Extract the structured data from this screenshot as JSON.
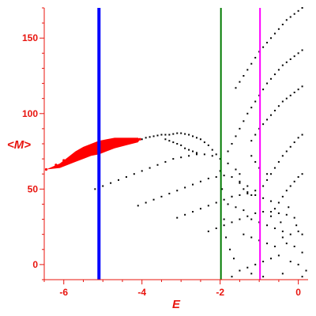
{
  "chart_data": {
    "type": "scatter",
    "title": "",
    "xlabel": "E",
    "ylabel": "<M>",
    "xlim": [
      -6.5,
      0.25
    ],
    "ylim": [
      -10,
      170
    ],
    "xticks": [
      -6,
      -4,
      -2,
      0
    ],
    "yticks": [
      0,
      50,
      100,
      150
    ],
    "grid": false,
    "colors": {
      "axis": "#e8140e",
      "red_series": "#ff0000",
      "black_series": "#000000",
      "line_blue": "#0000ff",
      "line_green": "#007a00",
      "line_magenta": "#ff00ff"
    },
    "vertical_lines": [
      {
        "x": -5.1,
        "color": "#0000ff"
      },
      {
        "x": -1.98,
        "color": "#007a00"
      },
      {
        "x": -0.98,
        "color": "#ff00ff"
      }
    ],
    "series": [
      {
        "color": "#ff0000",
        "kind": "dense-band",
        "points": [
          [
            -6.45,
            63
          ],
          [
            -6.2,
            66
          ],
          [
            -6.0,
            69
          ],
          [
            -5.8,
            71
          ],
          [
            -5.6,
            73
          ],
          [
            -5.4,
            75
          ],
          [
            -5.2,
            77
          ],
          [
            -5.0,
            78
          ],
          [
            -4.8,
            79
          ],
          [
            -4.6,
            80
          ],
          [
            -4.4,
            81
          ],
          [
            -4.2,
            82
          ],
          [
            -4.05,
            83
          ]
        ],
        "upper": [
          [
            -6.1,
            67
          ],
          [
            -5.9,
            71
          ],
          [
            -5.7,
            75
          ],
          [
            -5.5,
            78
          ],
          [
            -5.3,
            80
          ],
          [
            -5.1,
            82
          ],
          [
            -4.9,
            83
          ],
          [
            -4.7,
            84
          ],
          [
            -4.4,
            84
          ],
          [
            -4.1,
            84
          ]
        ],
        "lower": [
          [
            -6.1,
            64
          ],
          [
            -5.9,
            66
          ],
          [
            -5.7,
            68
          ],
          [
            -5.5,
            70
          ],
          [
            -5.3,
            72
          ],
          [
            -5.1,
            73
          ],
          [
            -4.9,
            75
          ],
          [
            -4.7,
            77
          ],
          [
            -4.4,
            79
          ],
          [
            -4.1,
            81
          ]
        ]
      },
      {
        "color": "#000000",
        "kind": "dots",
        "points": [
          [
            -4.0,
            83
          ],
          [
            -3.9,
            84
          ],
          [
            -3.8,
            84.5
          ],
          [
            -3.7,
            85
          ],
          [
            -3.6,
            85.5
          ],
          [
            -3.5,
            86
          ],
          [
            -3.4,
            86
          ],
          [
            -3.3,
            86
          ],
          [
            -3.2,
            86.5
          ],
          [
            -3.1,
            87
          ],
          [
            -3.0,
            87
          ],
          [
            -2.9,
            86.5
          ],
          [
            -2.8,
            86
          ],
          [
            -2.7,
            85
          ],
          [
            -2.6,
            84
          ],
          [
            -2.5,
            83
          ],
          [
            -2.4,
            81
          ],
          [
            -2.3,
            79
          ],
          [
            -2.2,
            76
          ],
          [
            -2.1,
            73
          ],
          [
            -3.4,
            83
          ],
          [
            -3.3,
            82
          ],
          [
            -3.2,
            81
          ],
          [
            -3.1,
            80
          ],
          [
            -3.0,
            79
          ],
          [
            -2.9,
            77
          ],
          [
            -2.8,
            76
          ],
          [
            -2.7,
            75
          ],
          [
            -2.6,
            74
          ],
          [
            -5.2,
            50
          ],
          [
            -5.0,
            52
          ],
          [
            -4.8,
            54
          ],
          [
            -4.6,
            56
          ],
          [
            -4.4,
            58
          ],
          [
            -4.2,
            60
          ],
          [
            -4.0,
            62
          ],
          [
            -3.8,
            64
          ],
          [
            -3.6,
            66
          ],
          [
            -3.4,
            68
          ],
          [
            -3.2,
            70
          ],
          [
            -3.0,
            71
          ],
          [
            -2.8,
            72
          ],
          [
            -2.6,
            73
          ],
          [
            -2.4,
            73
          ],
          [
            -2.2,
            72
          ],
          [
            -2.0,
            70
          ],
          [
            -1.8,
            67
          ],
          [
            -1.6,
            63
          ],
          [
            -1.5,
            60
          ],
          [
            -4.1,
            39
          ],
          [
            -3.9,
            41
          ],
          [
            -3.7,
            43
          ],
          [
            -3.5,
            45
          ],
          [
            -3.3,
            47
          ],
          [
            -3.1,
            49
          ],
          [
            -2.9,
            51
          ],
          [
            -2.7,
            53
          ],
          [
            -2.5,
            55
          ],
          [
            -2.3,
            57
          ],
          [
            -2.1,
            58
          ],
          [
            -1.9,
            59
          ],
          [
            -1.7,
            58
          ],
          [
            -1.5,
            55
          ],
          [
            -1.3,
            52
          ],
          [
            -1.1,
            49
          ],
          [
            -3.1,
            31
          ],
          [
            -2.9,
            33
          ],
          [
            -2.7,
            35
          ],
          [
            -2.5,
            37
          ],
          [
            -2.3,
            39
          ],
          [
            -2.1,
            41
          ],
          [
            -1.9,
            43
          ],
          [
            -1.7,
            45
          ],
          [
            -1.5,
            46
          ],
          [
            -1.3,
            47
          ],
          [
            -1.1,
            46
          ],
          [
            -0.9,
            44
          ],
          [
            -0.7,
            42
          ],
          [
            -2.3,
            22
          ],
          [
            -2.1,
            24
          ],
          [
            -1.9,
            26
          ],
          [
            -1.7,
            28
          ],
          [
            -1.5,
            30
          ],
          [
            -1.3,
            32
          ],
          [
            -1.1,
            34
          ],
          [
            -0.9,
            35
          ],
          [
            -0.7,
            35
          ],
          [
            -0.5,
            34
          ],
          [
            -0.3,
            33
          ],
          [
            -0.1,
            31
          ],
          [
            -1.6,
            117
          ],
          [
            -1.5,
            121
          ],
          [
            -1.4,
            125
          ],
          [
            -1.3,
            129
          ],
          [
            -1.2,
            133
          ],
          [
            -1.1,
            137
          ],
          [
            -1.0,
            141
          ],
          [
            -0.9,
            144
          ],
          [
            -0.8,
            147
          ],
          [
            -0.7,
            150
          ],
          [
            -0.6,
            153
          ],
          [
            -0.5,
            156
          ],
          [
            -0.4,
            159
          ],
          [
            -0.3,
            162
          ],
          [
            -0.2,
            164
          ],
          [
            -0.1,
            166
          ],
          [
            0.0,
            168
          ],
          [
            0.1,
            170
          ],
          [
            -1.8,
            75
          ],
          [
            -1.7,
            80
          ],
          [
            -1.6,
            85
          ],
          [
            -1.5,
            90
          ],
          [
            -1.4,
            95
          ],
          [
            -1.3,
            100
          ],
          [
            -1.2,
            104
          ],
          [
            -1.1,
            108
          ],
          [
            -1.0,
            112
          ],
          [
            -0.9,
            116
          ],
          [
            -0.8,
            120
          ],
          [
            -0.7,
            123
          ],
          [
            -0.6,
            126
          ],
          [
            -0.5,
            129
          ],
          [
            -0.4,
            132
          ],
          [
            -0.3,
            134
          ],
          [
            -0.2,
            136
          ],
          [
            -0.1,
            138
          ],
          [
            0.0,
            140
          ],
          [
            0.1,
            142
          ],
          [
            -1.2,
            82
          ],
          [
            -1.1,
            86
          ],
          [
            -1.0,
            90
          ],
          [
            -0.9,
            93
          ],
          [
            -0.8,
            96
          ],
          [
            -0.7,
            99
          ],
          [
            -0.6,
            102
          ],
          [
            -0.5,
            105
          ],
          [
            -0.4,
            108
          ],
          [
            -0.3,
            110
          ],
          [
            -0.2,
            112
          ],
          [
            -0.1,
            114
          ],
          [
            0.0,
            116
          ],
          [
            0.1,
            118
          ],
          [
            -0.9,
            52
          ],
          [
            -0.8,
            56
          ],
          [
            -0.7,
            60
          ],
          [
            -0.6,
            64
          ],
          [
            -0.5,
            68
          ],
          [
            -0.4,
            72
          ],
          [
            -0.3,
            75
          ],
          [
            -0.2,
            78
          ],
          [
            -0.1,
            81
          ],
          [
            0.0,
            84
          ],
          [
            0.1,
            86
          ],
          [
            -0.6,
            37
          ],
          [
            -0.5,
            41
          ],
          [
            -0.4,
            45
          ],
          [
            -0.3,
            49
          ],
          [
            -0.2,
            52
          ],
          [
            -0.1,
            55
          ],
          [
            0.0,
            58
          ],
          [
            0.1,
            60
          ],
          [
            -1.2,
            72
          ],
          [
            -1.1,
            68
          ],
          [
            -1.0,
            64
          ],
          [
            -0.8,
            60
          ],
          [
            -1.5,
            54
          ],
          [
            -1.4,
            50
          ],
          [
            -1.3,
            48
          ],
          [
            -1.2,
            46
          ],
          [
            -1.7,
            45
          ],
          [
            -1.8,
            40
          ],
          [
            -1.6,
            38
          ],
          [
            -1.4,
            36
          ],
          [
            -1.2,
            30
          ],
          [
            -1.0,
            28
          ],
          [
            -0.8,
            26
          ],
          [
            -0.6,
            24
          ],
          [
            -0.4,
            22
          ],
          [
            -1.4,
            20
          ],
          [
            -1.2,
            18
          ],
          [
            -1.0,
            16
          ],
          [
            -0.8,
            14
          ],
          [
            -0.6,
            12
          ],
          [
            -0.4,
            18
          ],
          [
            -0.2,
            20
          ],
          [
            0.0,
            22
          ],
          [
            0.1,
            20
          ],
          [
            -0.3,
            14
          ],
          [
            -0.1,
            12
          ],
          [
            0.1,
            8
          ],
          [
            -0.5,
            6
          ],
          [
            -0.7,
            4
          ],
          [
            -0.9,
            2
          ],
          [
            -1.1,
            0
          ],
          [
            -1.3,
            -2
          ],
          [
            -1.5,
            -4
          ],
          [
            -0.2,
            2
          ],
          [
            0.0,
            0
          ],
          [
            0.2,
            -4
          ],
          [
            -1.7,
            -8
          ],
          [
            -1.2,
            -6
          ],
          [
            -0.9,
            -8
          ],
          [
            -0.4,
            -6
          ],
          [
            0.1,
            -8
          ],
          [
            -2.0,
            62
          ],
          [
            -1.95,
            50
          ],
          [
            -1.9,
            30
          ],
          [
            -1.85,
            18
          ],
          [
            -1.75,
            10
          ],
          [
            -1.65,
            4
          ],
          [
            -0.7,
            32
          ],
          [
            -0.45,
            28
          ],
          [
            -0.25,
            38
          ],
          [
            -0.05,
            26
          ]
        ]
      }
    ]
  }
}
